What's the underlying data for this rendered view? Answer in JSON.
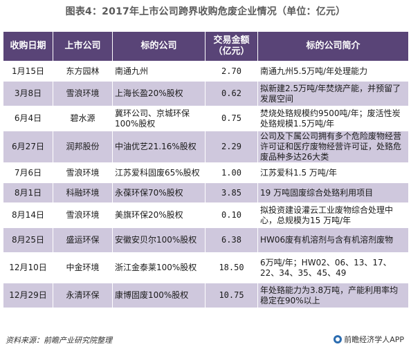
{
  "title": "图表4：2017年上市公司跨界收购危废企业情况（单位：亿元）",
  "table": {
    "headers": [
      "收购日期",
      "上市公司",
      "标的公司",
      "交易金额\n（亿元）",
      "标的公司简介"
    ],
    "rows": [
      {
        "date": "1月15日",
        "company": "东方园林",
        "target": "南通九州",
        "amount": "2.70",
        "summary": "南通九州5.5万吨/年处理能力"
      },
      {
        "date": "3月8日",
        "company": "雪浪环境",
        "target": "上海长盈20%股权",
        "amount": "0.62",
        "summary": "拟新建2.5万吨/年焚烧产能，并预留了发展空间"
      },
      {
        "date": "6月4日",
        "company": "碧水源",
        "target": "冀环公司、京城环保100%股权",
        "amount": "0.75",
        "summary": "焚烧处臵规模约9500吨/年；废活性炭处臵规模1.5万吨/年"
      },
      {
        "date": "6月27日",
        "company": "润邦股份",
        "target": "中油优艺21.16%股权",
        "amount": "2.29",
        "summary": "公司及下属公司拥有多个危险废物经营许可证和医疗废物经营许可证，处臵危废品种多达26大类"
      },
      {
        "date": "7月6日",
        "company": "雪浪环境",
        "target": "江苏爱科固废65%股权",
        "amount": "1.00",
        "summary": "江苏爱科1.5 万吨/年"
      },
      {
        "date": "8月1日",
        "company": "科融环境",
        "target": "永葆环保70%股权",
        "amount": "3.85",
        "summary": "19 万吨固废综合处臵利用项目"
      },
      {
        "date": "8月14日",
        "company": "雪浪环境",
        "target": "美旗环保20%股权",
        "amount": "0.10",
        "summary": "拟投资建设灌云工业废物综合处理中心，总规模为15 万吨/年"
      },
      {
        "date": "8月25日",
        "company": "盛运环保",
        "target": "安徽安贝尔100%股权",
        "amount": "6.38",
        "summary": "HW06废有机溶剂与含有机溶剂废物"
      },
      {
        "date": "12月10日",
        "company": "中金环境",
        "target": "浙江金泰莱100%股权",
        "amount": "18.50",
        "summary": "6万吨/年；HW02、06、13、17、22、34、35、45、49"
      },
      {
        "date": "12月29日",
        "company": "永清环保",
        "target": "康博固废100%股权",
        "amount": "10.75",
        "summary": "年处臵能力为3.8万吨，产能利用率均稳定在90%以上"
      }
    ]
  },
  "footer": {
    "source": "资料来源：前瞻产业研究院整理",
    "brand": "前瞻经济学人APP",
    "brand_icon": "brand-logo-icon"
  },
  "colors": {
    "header_bg": "#594477",
    "band_bg": "#cfc8dd"
  }
}
